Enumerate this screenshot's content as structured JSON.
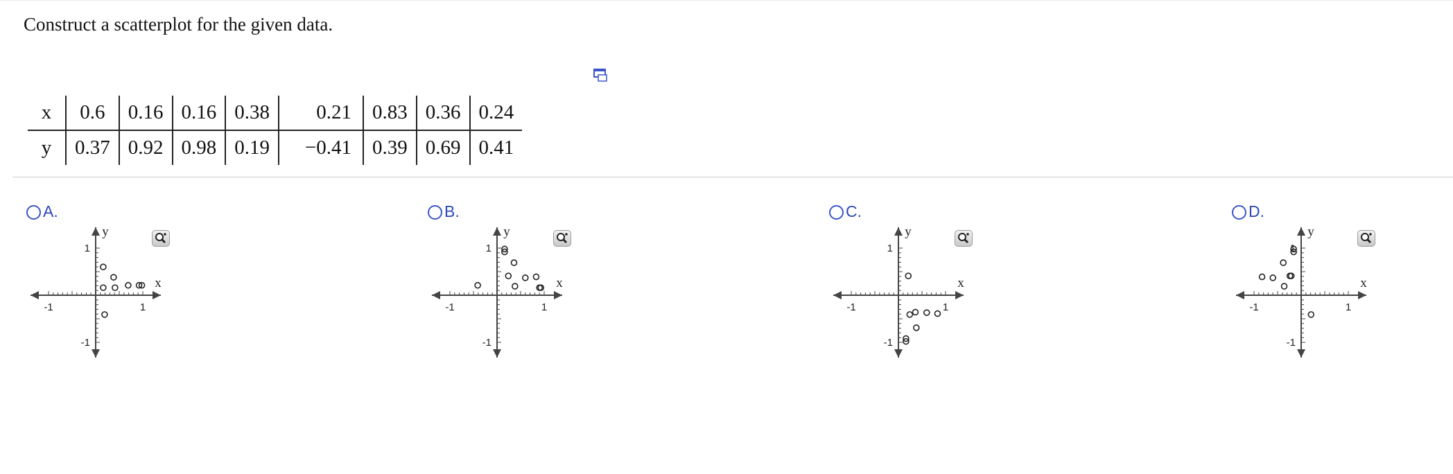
{
  "question": "Construct a scatterplot for the given data.",
  "table": {
    "x_label": "x",
    "y_label": "y",
    "x_values": [
      "0.6",
      "0.16",
      "0.16",
      "0.38",
      "0.21",
      "0.83",
      "0.36",
      "0.24"
    ],
    "y_values": [
      "0.37",
      "0.92",
      "0.98",
      "0.19",
      "−0.41",
      "0.39",
      "0.69",
      "0.41"
    ]
  },
  "icons": {
    "copy": "copy-table-icon",
    "zoom": "magnifier-zoom-icon"
  },
  "colors": {
    "link_blue": "#2d47b8",
    "axis": "#444444"
  },
  "choices": [
    {
      "letter": "A.",
      "axis_x": "x",
      "axis_y": "y",
      "tick_pos_x": "1",
      "tick_neg_x": "-1",
      "tick_pos_y": "1",
      "tick_neg_y": "-1",
      "chart_data": {
        "type": "scatter",
        "x": [
          0.16,
          0.16,
          0.41,
          0.38,
          0.69,
          0.92,
          0.98,
          0.19
        ],
        "y": [
          0.6,
          0.16,
          0.16,
          0.38,
          0.21,
          0.21,
          0.21,
          -0.41
        ],
        "xlim": [
          -1.3,
          1.3
        ],
        "ylim": [
          -1.3,
          1.3
        ]
      }
    },
    {
      "letter": "B.",
      "axis_x": "x",
      "axis_y": "y",
      "tick_pos_x": "1",
      "tick_neg_x": "-1",
      "tick_pos_y": "1",
      "tick_neg_y": "-1",
      "chart_data": {
        "type": "scatter",
        "x": [
          0.6,
          0.16,
          0.16,
          0.38,
          -0.41,
          0.83,
          0.36,
          0.24,
          0.9,
          0.93
        ],
        "y": [
          0.37,
          0.92,
          0.98,
          0.19,
          0.21,
          0.39,
          0.69,
          0.41,
          0.16,
          0.16
        ],
        "xlim": [
          -1.3,
          1.3
        ],
        "ylim": [
          -1.3,
          1.3
        ]
      }
    },
    {
      "letter": "C.",
      "axis_x": "x",
      "axis_y": "y",
      "tick_pos_x": "1",
      "tick_neg_x": "-1",
      "tick_pos_y": "1",
      "tick_neg_y": "-1",
      "chart_data": {
        "type": "scatter",
        "x": [
          0.21,
          0.36,
          0.24,
          0.6,
          0.83,
          0.38,
          0.16,
          0.16
        ],
        "y": [
          0.41,
          -0.36,
          -0.41,
          -0.37,
          -0.39,
          -0.69,
          -0.92,
          -0.98
        ],
        "xlim": [
          -1.3,
          1.3
        ],
        "ylim": [
          -1.3,
          1.3
        ]
      }
    },
    {
      "letter": "D.",
      "axis_x": "x",
      "axis_y": "y",
      "tick_pos_x": "1",
      "tick_neg_x": "-1",
      "tick_pos_y": "1",
      "tick_neg_y": "-1",
      "chart_data": {
        "type": "scatter",
        "x": [
          -0.16,
          -0.16,
          -0.38,
          -0.21,
          -0.6,
          -0.83,
          -0.36,
          -0.24,
          0.21
        ],
        "y": [
          0.92,
          0.98,
          0.69,
          0.41,
          0.37,
          0.39,
          0.19,
          0.41,
          -0.41
        ],
        "xlim": [
          -1.3,
          1.3
        ],
        "ylim": [
          -1.3,
          1.3
        ]
      }
    }
  ]
}
